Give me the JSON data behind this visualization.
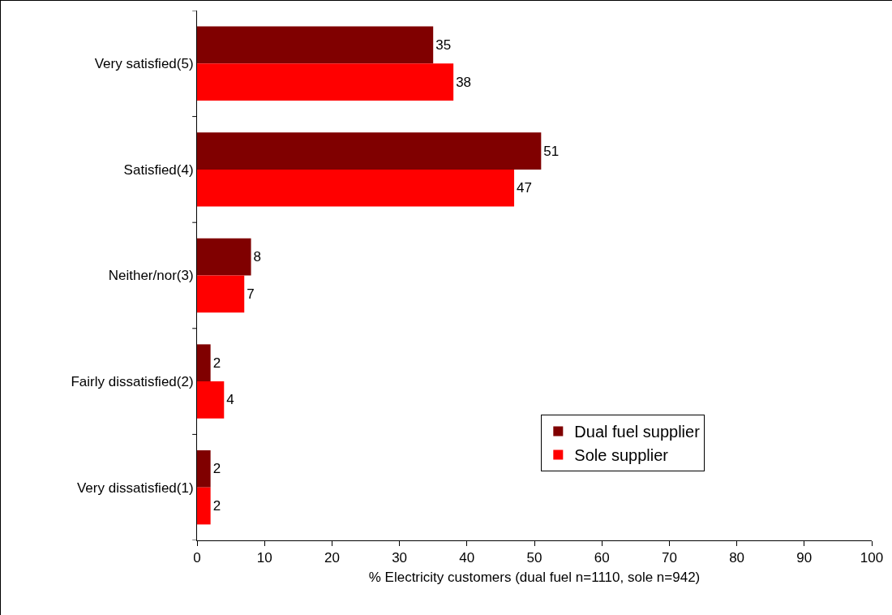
{
  "chart_data": {
    "type": "bar",
    "orientation": "horizontal",
    "xlabel": "% Electricity customers (dual fuel n=1110, sole n=942)",
    "categories": [
      "Very satisfied(5)",
      "Satisfied(4)",
      "Neither/nor(3)",
      "Fairly dissatisfied(2)",
      "Very dissatisfied(1)"
    ],
    "series": [
      {
        "name": "Dual fuel supplier",
        "color": "#800000",
        "values": [
          35,
          51,
          8,
          2,
          2
        ]
      },
      {
        "name": "Sole supplier",
        "color": "#ff0000",
        "values": [
          38,
          47,
          7,
          4,
          2
        ]
      }
    ],
    "xlim": [
      0,
      100
    ],
    "xticks": [
      0,
      10,
      20,
      30,
      40,
      50,
      60,
      70,
      80,
      90,
      100
    ],
    "data_labels": true,
    "legend": "bottom right"
  }
}
